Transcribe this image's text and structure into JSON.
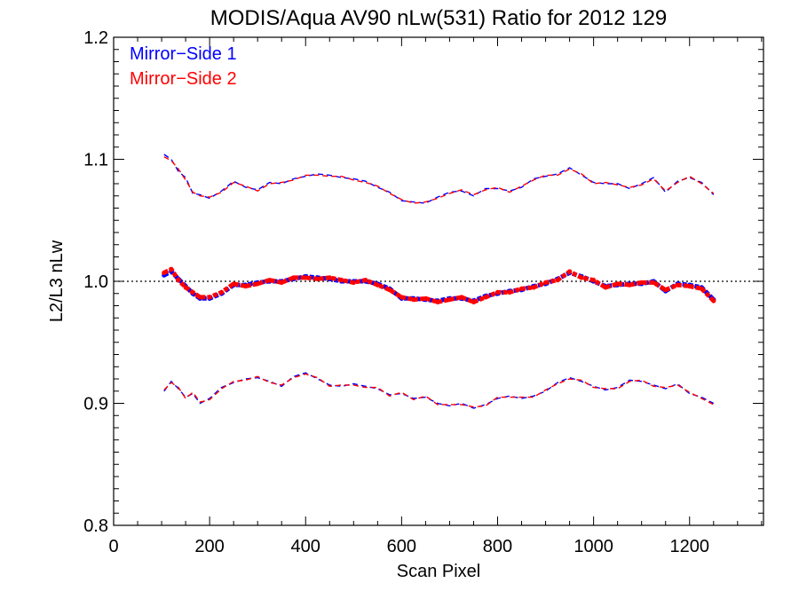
{
  "chart_data": {
    "type": "line",
    "title": "MODIS/Aqua AV90 nLw(531) Ratio for 2012 129",
    "xlabel": "Scan Pixel",
    "ylabel": "L2/L3 nLw",
    "xlim": [
      0,
      1354
    ],
    "ylim": [
      0.8,
      1.2
    ],
    "xticks": [
      0,
      200,
      400,
      600,
      800,
      1000,
      1200
    ],
    "xtick_labels": [
      "0",
      "200",
      "400",
      "600",
      "800",
      "1000",
      "1200"
    ],
    "yticks": [
      0.8,
      0.9,
      1.0,
      1.1,
      1.2
    ],
    "ytick_labels": [
      "0.8",
      "0.9",
      "1.0",
      "1.1",
      "1.2"
    ],
    "grid": false,
    "reference_line": 1.0,
    "legend": {
      "placement": "top-left",
      "entries": [
        {
          "label": "Mirror−Side 1",
          "color": "#0000ff"
        },
        {
          "label": "Mirror−Side 2",
          "color": "#ff0000"
        }
      ]
    },
    "x": [
      105,
      120,
      135,
      150,
      165,
      180,
      200,
      225,
      250,
      275,
      300,
      325,
      350,
      375,
      400,
      425,
      450,
      475,
      500,
      525,
      550,
      575,
      600,
      625,
      650,
      675,
      700,
      725,
      750,
      775,
      800,
      825,
      850,
      875,
      900,
      925,
      950,
      975,
      1000,
      1025,
      1050,
      1075,
      1100,
      1125,
      1150,
      1175,
      1200,
      1225,
      1250
    ],
    "series": [
      {
        "name": "Mirror−Side 1",
        "color": "#0000ff",
        "mean": [
          1.005,
          1.008,
          1.002,
          0.996,
          0.99,
          0.986,
          0.986,
          0.99,
          0.997,
          0.997,
          0.999,
          1.0,
          1.0,
          1.002,
          1.004,
          1.003,
          1.002,
          1.0,
          1.0,
          1.0,
          0.998,
          0.994,
          0.986,
          0.986,
          0.985,
          0.984,
          0.986,
          0.986,
          0.984,
          0.988,
          0.99,
          0.992,
          0.993,
          0.996,
          0.998,
          1.002,
          1.007,
          1.004,
          1.0,
          0.996,
          0.997,
          0.998,
          0.998,
          1.0,
          0.992,
          0.998,
          0.997,
          0.995,
          0.985
        ],
        "upper": [
          1.104,
          1.1,
          1.09,
          1.085,
          1.072,
          1.071,
          1.068,
          1.074,
          1.082,
          1.077,
          1.075,
          1.081,
          1.08,
          1.084,
          1.086,
          1.088,
          1.087,
          1.085,
          1.084,
          1.082,
          1.077,
          1.073,
          1.066,
          1.065,
          1.064,
          1.069,
          1.073,
          1.074,
          1.07,
          1.076,
          1.076,
          1.074,
          1.077,
          1.084,
          1.086,
          1.088,
          1.093,
          1.087,
          1.081,
          1.08,
          1.08,
          1.076,
          1.08,
          1.085,
          1.073,
          1.082,
          1.085,
          1.081,
          1.071
        ],
        "lower": [
          0.91,
          0.918,
          0.912,
          0.905,
          0.908,
          0.9,
          0.904,
          0.913,
          0.917,
          0.92,
          0.921,
          0.918,
          0.914,
          0.922,
          0.925,
          0.92,
          0.915,
          0.914,
          0.916,
          0.914,
          0.912,
          0.907,
          0.908,
          0.904,
          0.905,
          0.9,
          0.898,
          0.9,
          0.896,
          0.899,
          0.904,
          0.906,
          0.904,
          0.906,
          0.91,
          0.917,
          0.921,
          0.918,
          0.914,
          0.911,
          0.913,
          0.919,
          0.918,
          0.915,
          0.912,
          0.916,
          0.908,
          0.905,
          0.9
        ]
      },
      {
        "name": "Mirror−Side 2",
        "color": "#ff0000",
        "mean": [
          1.007,
          1.01,
          1.001,
          0.995,
          0.991,
          0.987,
          0.987,
          0.991,
          0.998,
          0.996,
          0.998,
          1.001,
          0.999,
          1.003,
          1.003,
          1.002,
          1.003,
          1.001,
          0.999,
          1.001,
          0.997,
          0.993,
          0.987,
          0.985,
          0.986,
          0.983,
          0.985,
          0.987,
          0.983,
          0.987,
          0.991,
          0.991,
          0.994,
          0.995,
          0.999,
          1.001,
          1.008,
          1.003,
          1.001,
          0.995,
          0.998,
          0.997,
          0.999,
          0.999,
          0.993,
          0.997,
          0.996,
          0.994,
          0.984
        ],
        "upper": [
          1.102,
          1.099,
          1.092,
          1.083,
          1.073,
          1.07,
          1.069,
          1.073,
          1.081,
          1.078,
          1.074,
          1.08,
          1.081,
          1.083,
          1.087,
          1.087,
          1.086,
          1.086,
          1.083,
          1.081,
          1.078,
          1.072,
          1.067,
          1.064,
          1.065,
          1.068,
          1.072,
          1.075,
          1.071,
          1.075,
          1.077,
          1.073,
          1.078,
          1.083,
          1.087,
          1.087,
          1.092,
          1.088,
          1.08,
          1.081,
          1.079,
          1.077,
          1.079,
          1.084,
          1.074,
          1.081,
          1.086,
          1.08,
          1.072
        ],
        "lower": [
          0.911,
          0.917,
          0.913,
          0.904,
          0.909,
          0.901,
          0.903,
          0.912,
          0.918,
          0.919,
          0.922,
          0.917,
          0.915,
          0.921,
          0.924,
          0.921,
          0.914,
          0.915,
          0.915,
          0.913,
          0.913,
          0.906,
          0.909,
          0.903,
          0.906,
          0.899,
          0.899,
          0.899,
          0.897,
          0.898,
          0.905,
          0.905,
          0.905,
          0.905,
          0.911,
          0.916,
          0.92,
          0.919,
          0.913,
          0.912,
          0.912,
          0.918,
          0.919,
          0.914,
          0.913,
          0.915,
          0.909,
          0.904,
          0.899
        ]
      }
    ]
  }
}
